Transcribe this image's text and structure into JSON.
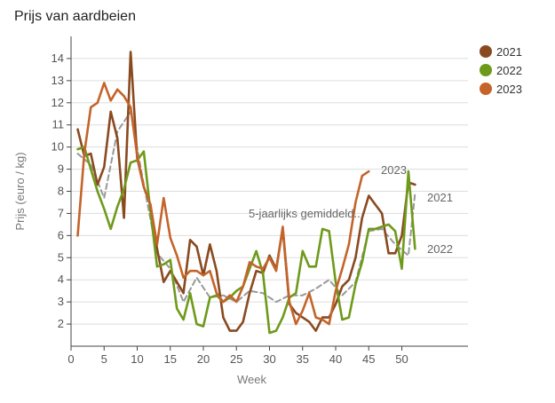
{
  "title": "Prijs van aardbeien",
  "chart_data": {
    "type": "line",
    "title": "Prijs van aardbeien",
    "xlabel": "Week",
    "ylabel": "Prijs (euro / kg)",
    "xlim": [
      0,
      60
    ],
    "ylim": [
      1,
      15
    ],
    "xticks": [
      0,
      5,
      10,
      15,
      20,
      25,
      30,
      35,
      40,
      45,
      50
    ],
    "yticks": [
      2,
      3,
      4,
      5,
      6,
      7,
      8,
      9,
      10,
      11,
      12,
      13,
      14
    ],
    "grid": "horizontal",
    "legend_position": "right",
    "series": [
      {
        "name": "2021",
        "color": "#8a4a20",
        "end_label": "2021",
        "x": [
          1,
          2,
          3,
          4,
          5,
          6,
          7,
          8,
          9,
          10,
          11,
          12,
          13,
          14,
          15,
          16,
          17,
          18,
          19,
          20,
          21,
          22,
          23,
          24,
          25,
          26,
          27,
          28,
          29,
          30,
          31,
          32,
          33,
          34,
          35,
          36,
          37,
          38,
          39,
          40,
          41,
          42,
          43,
          44,
          45,
          46,
          47,
          48,
          49,
          50,
          51,
          52
        ],
        "y": [
          10.8,
          9.6,
          9.7,
          8.3,
          9.1,
          11.6,
          10.4,
          6.8,
          14.3,
          9.5,
          8.2,
          7.4,
          5.4,
          3.9,
          4.4,
          3.9,
          3.4,
          5.8,
          5.5,
          4.2,
          5.6,
          4.4,
          2.3,
          1.7,
          1.7,
          2.1,
          3.4,
          4.4,
          4.3,
          5.1,
          4.5,
          6.3,
          2.9,
          2.5,
          2.3,
          2.1,
          1.7,
          2.3,
          2.3,
          2.9,
          3.7,
          4.0,
          5.0,
          6.8,
          7.8,
          7.4,
          7.0,
          5.2,
          5.2,
          6.0,
          8.4,
          8.3
        ]
      },
      {
        "name": "2022",
        "color": "#6e9a1a",
        "end_label": "2022",
        "x": [
          1,
          2,
          3,
          4,
          5,
          6,
          7,
          8,
          9,
          10,
          11,
          12,
          13,
          14,
          15,
          16,
          17,
          18,
          19,
          20,
          21,
          22,
          23,
          24,
          25,
          26,
          27,
          28,
          29,
          30,
          31,
          32,
          33,
          34,
          35,
          36,
          37,
          38,
          39,
          40,
          41,
          42,
          43,
          44,
          45,
          46,
          47,
          48,
          49,
          50,
          51,
          52
        ],
        "y": [
          9.9,
          10.0,
          9.0,
          8.0,
          7.2,
          6.3,
          7.3,
          8.1,
          9.3,
          9.4,
          9.8,
          7.1,
          4.6,
          4.7,
          4.9,
          2.7,
          2.2,
          3.4,
          2.0,
          1.9,
          3.2,
          3.3,
          3.0,
          3.2,
          3.5,
          3.7,
          4.5,
          5.3,
          4.3,
          1.6,
          1.7,
          2.3,
          3.2,
          3.4,
          5.3,
          4.6,
          4.6,
          6.3,
          6.2,
          3.9,
          2.2,
          2.3,
          3.8,
          4.8,
          6.3,
          6.3,
          6.4,
          6.5,
          6.2,
          4.5,
          8.9,
          5.4
        ]
      },
      {
        "name": "2023",
        "color": "#c4642a",
        "end_label": "2023",
        "x": [
          1,
          2,
          3,
          4,
          5,
          6,
          7,
          8,
          9,
          10,
          11,
          12,
          13,
          14,
          15,
          16,
          17,
          18,
          19,
          20,
          21,
          22,
          23,
          24,
          25,
          26,
          27,
          28,
          29,
          30,
          31,
          32,
          33,
          34,
          35,
          36,
          37,
          38,
          39,
          40,
          41,
          42,
          43,
          44,
          45
        ],
        "y": [
          6.0,
          9.7,
          11.8,
          12.0,
          12.9,
          12.1,
          12.6,
          12.3,
          11.8,
          9.6,
          8.2,
          7.4,
          5.6,
          7.7,
          5.9,
          5.1,
          4.1,
          4.4,
          4.4,
          4.2,
          4.4,
          3.4,
          3.0,
          3.3,
          3.0,
          3.7,
          4.8,
          4.6,
          4.5,
          5.0,
          4.4,
          6.4,
          3.0,
          2.0,
          2.6,
          3.4,
          2.3,
          2.2,
          2.0,
          3.5,
          4.5,
          5.6,
          7.5,
          8.7,
          8.9
        ]
      },
      {
        "name": "5-jaarlijks gemiddeld",
        "color": "#999999",
        "dashed": true,
        "end_label": "5-jaarlijks gemiddeld...",
        "x": [
          1,
          3,
          5,
          7,
          9,
          11,
          13,
          15,
          17,
          19,
          21,
          23,
          25,
          27,
          29,
          31,
          33,
          35,
          37,
          39,
          41,
          43,
          45,
          47,
          49,
          51,
          52
        ],
        "y": [
          9.7,
          9.2,
          7.7,
          10.7,
          11.6,
          8.3,
          5.2,
          4.5,
          3.0,
          4.1,
          3.2,
          3.3,
          3.0,
          3.5,
          3.4,
          3.0,
          3.3,
          3.3,
          3.6,
          4.0,
          3.3,
          3.9,
          6.2,
          6.3,
          5.6,
          5.1,
          7.9
        ]
      }
    ],
    "legend": [
      "2021",
      "2022",
      "2023"
    ]
  }
}
